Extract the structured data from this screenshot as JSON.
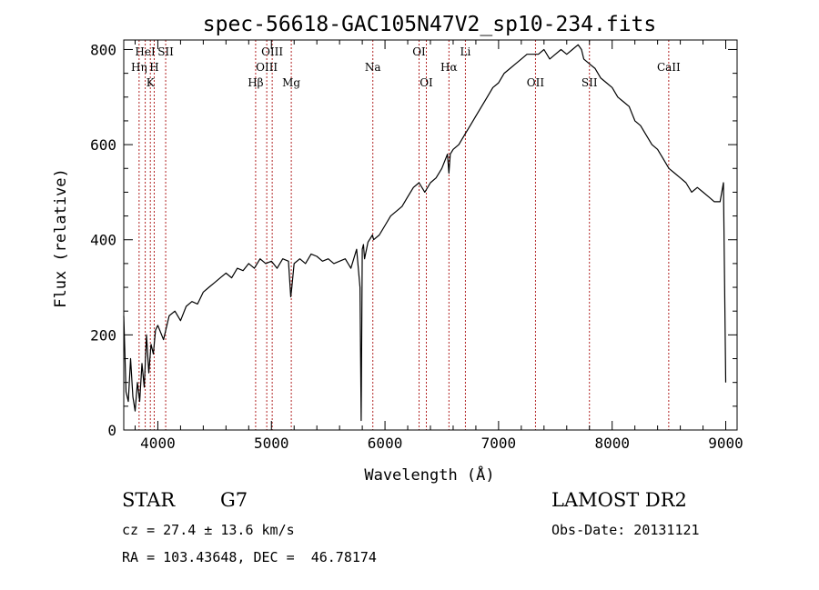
{
  "chart_data": {
    "type": "line",
    "title": "spec-56618-GAC105N47V2_sp10-234.fits",
    "xlabel": "Wavelength (Å)",
    "ylabel": "Flux (relative)",
    "xlim": [
      3700,
      9100
    ],
    "ylim": [
      0,
      820
    ],
    "x_ticks": [
      4000,
      5000,
      6000,
      7000,
      8000,
      9000
    ],
    "y_ticks": [
      0,
      200,
      400,
      600,
      800
    ],
    "grid": false,
    "line_color": "#000000",
    "marker_color": "#b22222",
    "series": [
      {
        "x": [
          3700,
          3720,
          3740,
          3760,
          3780,
          3800,
          3820,
          3840,
          3860,
          3880,
          3900,
          3920,
          3940,
          3960,
          3980,
          4000,
          4050,
          4100,
          4150,
          4200,
          4250,
          4300,
          4350,
          4400,
          4450,
          4500,
          4550,
          4600,
          4650,
          4700,
          4750,
          4800,
          4850,
          4900,
          4950,
          5000,
          5050,
          5100,
          5150,
          5170,
          5180,
          5200,
          5250,
          5300,
          5350,
          5400,
          5450,
          5500,
          5550,
          5600,
          5650,
          5700,
          5750,
          5780,
          5790,
          5800,
          5810,
          5820,
          5850,
          5890,
          5900,
          5950,
          6000,
          6050,
          6100,
          6150,
          6200,
          6250,
          6300,
          6350,
          6400,
          6450,
          6500,
          6550,
          6563,
          6575,
          6600,
          6650,
          6700,
          6750,
          6800,
          6850,
          6900,
          6950,
          7000,
          7050,
          7100,
          7150,
          7200,
          7250,
          7300,
          7350,
          7400,
          7450,
          7500,
          7550,
          7600,
          7650,
          7700,
          7730,
          7750,
          7800,
          7850,
          7900,
          7950,
          8000,
          8050,
          8100,
          8150,
          8200,
          8250,
          8300,
          8350,
          8400,
          8450,
          8500,
          8550,
          8600,
          8650,
          8700,
          8750,
          8800,
          8850,
          8900,
          8950,
          8980,
          9000
        ],
        "y": [
          240,
          80,
          60,
          150,
          70,
          40,
          100,
          60,
          140,
          90,
          200,
          120,
          180,
          160,
          210,
          220,
          190,
          240,
          250,
          230,
          260,
          270,
          265,
          290,
          300,
          310,
          320,
          330,
          320,
          340,
          335,
          350,
          340,
          360,
          350,
          355,
          340,
          360,
          355,
          280,
          300,
          350,
          360,
          350,
          370,
          365,
          355,
          360,
          350,
          355,
          360,
          340,
          380,
          300,
          20,
          380,
          390,
          360,
          395,
          410,
          400,
          410,
          430,
          450,
          460,
          470,
          490,
          510,
          520,
          500,
          520,
          530,
          550,
          580,
          540,
          580,
          590,
          600,
          620,
          640,
          660,
          680,
          700,
          720,
          730,
          750,
          760,
          770,
          780,
          790,
          790,
          790,
          800,
          780,
          790,
          800,
          790,
          800,
          810,
          800,
          780,
          770,
          760,
          740,
          730,
          720,
          700,
          690,
          680,
          650,
          640,
          620,
          600,
          590,
          570,
          550,
          540,
          530,
          520,
          500,
          510,
          500,
          490,
          480,
          480,
          520,
          100
        ]
      }
    ],
    "lines": [
      {
        "name": "HeI",
        "x": 3889,
        "row": 1
      },
      {
        "name": "SII",
        "x": 4069,
        "row": 1
      },
      {
        "name": "Hη",
        "x": 3835,
        "row": 2
      },
      {
        "name": "H",
        "x": 3968,
        "row": 2
      },
      {
        "name": "K",
        "x": 3934,
        "row": 3
      },
      {
        "name": "OIII",
        "x": 5007,
        "row": 1
      },
      {
        "name": "OIII",
        "x": 4959,
        "row": 2
      },
      {
        "name": "Hβ",
        "x": 4861,
        "row": 3
      },
      {
        "name": "Mg",
        "x": 5175,
        "row": 3
      },
      {
        "name": "Na",
        "x": 5893,
        "row": 2
      },
      {
        "name": "OI",
        "x": 6300,
        "row": 1
      },
      {
        "name": "OI",
        "x": 6364,
        "row": 3
      },
      {
        "name": "Hα",
        "x": 6563,
        "row": 2
      },
      {
        "name": "Li",
        "x": 6708,
        "row": 1
      },
      {
        "name": "OII",
        "x": 7325,
        "row": 3
      },
      {
        "name": "SII",
        "x": 7800,
        "row": 3
      },
      {
        "name": "CaII",
        "x": 8498,
        "row": 2
      }
    ]
  },
  "info": {
    "object_type": "STAR",
    "subclass": "G7",
    "survey": "LAMOST DR2",
    "cz": "cz = 27.4 ± 13.6 km/s",
    "obs_date": "Obs-Date: 20131121",
    "coords": "RA = 103.43648, DEC =  46.78174"
  }
}
